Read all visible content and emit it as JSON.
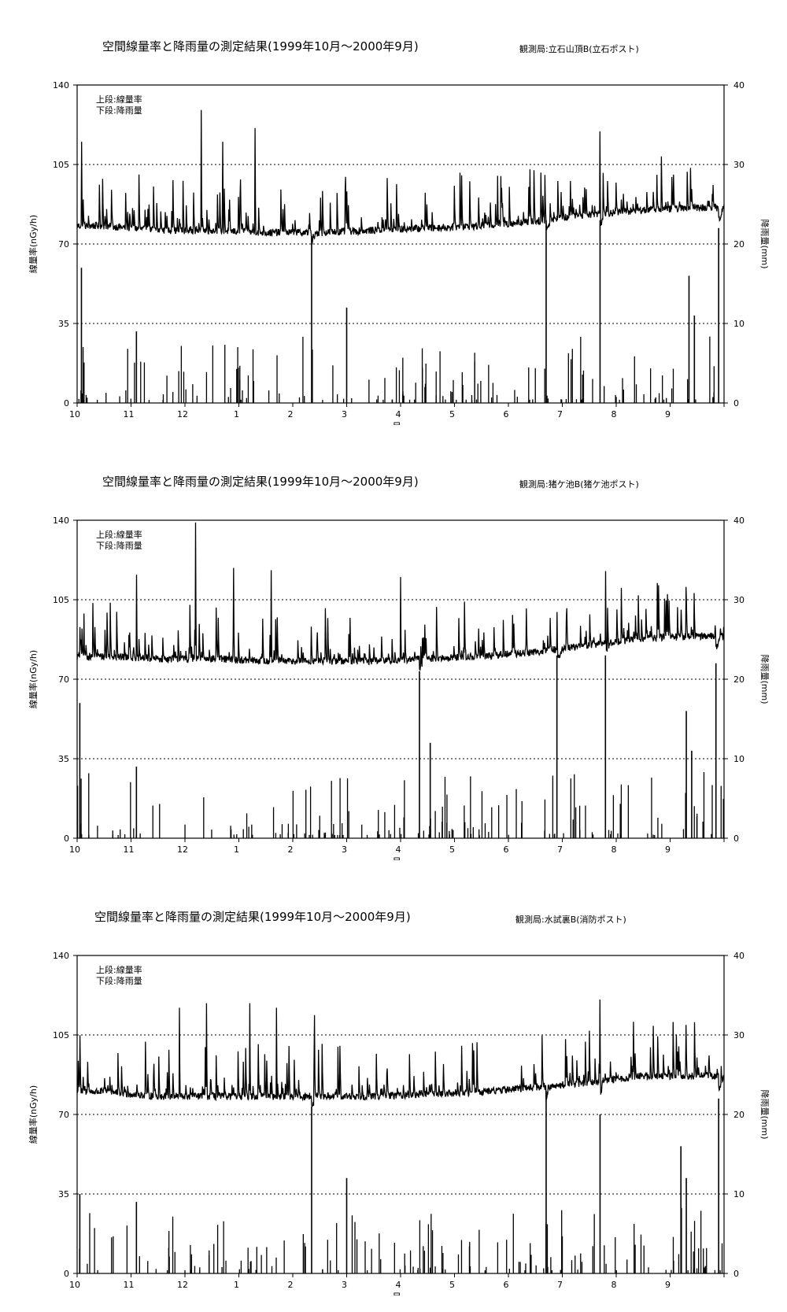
{
  "chart_data": [
    {
      "type": "line",
      "title": "空間線量率と降雨量の測定結果(1999年10月～2000年9月)",
      "station": "観測局:立石山頂B(立石ポスト)",
      "legend": [
        "上段:線量率",
        "下段:降雨量"
      ],
      "legend_placement": "top-left",
      "xlabel": "月",
      "ylabel": "線量率(nGy/h)",
      "y2label": "降雨量(mm)",
      "ylim": [
        0,
        140
      ],
      "y2lim": [
        0,
        40
      ],
      "yticks": [
        0,
        35,
        70,
        105,
        140
      ],
      "y2ticks": [
        0,
        10,
        20,
        30,
        40
      ],
      "grid": "dotted at 35, 70, 105",
      "xticks": [
        "10",
        "11",
        "12",
        "1",
        "2",
        "3",
        "4",
        "5",
        "6",
        "7",
        "8",
        "9"
      ],
      "dose_baseline": [
        {
          "month": "10",
          "value": 78
        },
        {
          "month": "11",
          "value": 76
        },
        {
          "month": "12",
          "value": 76
        },
        {
          "month": "1",
          "value": 75
        },
        {
          "month": "2",
          "value": 75
        },
        {
          "month": "3",
          "value": 76
        },
        {
          "month": "4",
          "value": 77
        },
        {
          "month": "5",
          "value": 78
        },
        {
          "month": "6",
          "value": 80
        },
        {
          "month": "7",
          "value": 83
        },
        {
          "month": "8",
          "value": 85
        },
        {
          "month": "9",
          "value": 86
        }
      ],
      "dose_peaks": [
        {
          "t": 0.08,
          "value": 115
        },
        {
          "t": 2.3,
          "value": 129
        },
        {
          "t": 2.7,
          "value": 115
        },
        {
          "t": 3.3,
          "value": 121
        },
        {
          "t": 7.8,
          "value": 100
        },
        {
          "t": 9.7,
          "value": 125
        },
        {
          "t": 11.8,
          "value": 96
        }
      ],
      "rain_peaks": [
        {
          "t": 0.08,
          "value": 17
        },
        {
          "t": 1.1,
          "value": 9
        },
        {
          "t": 4.35,
          "value": 21
        },
        {
          "t": 5.0,
          "value": 12
        },
        {
          "t": 8.7,
          "value": 23
        },
        {
          "t": 9.7,
          "value": 23
        },
        {
          "t": 11.35,
          "value": 16
        },
        {
          "t": 11.45,
          "value": 11
        },
        {
          "t": 11.9,
          "value": 22
        }
      ]
    },
    {
      "type": "line",
      "title": "空間線量率と降雨量の測定結果(1999年10月～2000年9月)",
      "station": "観測局:猪ケ池B(猪ケ池ポスト)",
      "legend": [
        "上段:線量率",
        "下段:降雨量"
      ],
      "legend_placement": "top-left",
      "xlabel": "月",
      "ylabel": "線量率(nGy/h)",
      "y2label": "降雨量(mm)",
      "ylim": [
        0,
        140
      ],
      "y2lim": [
        0,
        40
      ],
      "yticks": [
        0,
        35,
        70,
        105,
        140
      ],
      "y2ticks": [
        0,
        10,
        20,
        30,
        40
      ],
      "grid": "dotted at 35, 70, 105",
      "xticks": [
        "10",
        "11",
        "12",
        "1",
        "2",
        "3",
        "4",
        "5",
        "6",
        "7",
        "8",
        "9"
      ],
      "dose_baseline": [
        {
          "month": "10",
          "value": 80
        },
        {
          "month": "11",
          "value": 79
        },
        {
          "month": "12",
          "value": 79
        },
        {
          "month": "1",
          "value": 78
        },
        {
          "month": "2",
          "value": 78
        },
        {
          "month": "3",
          "value": 78
        },
        {
          "month": "4",
          "value": 79
        },
        {
          "month": "5",
          "value": 80
        },
        {
          "month": "6",
          "value": 82
        },
        {
          "month": "7",
          "value": 85
        },
        {
          "month": "8",
          "value": 88
        },
        {
          "month": "9",
          "value": 89
        }
      ],
      "dose_peaks": [
        {
          "t": 2.2,
          "value": 139
        },
        {
          "t": 1.1,
          "value": 116
        },
        {
          "t": 2.9,
          "value": 119
        },
        {
          "t": 3.6,
          "value": 118
        },
        {
          "t": 6.0,
          "value": 115
        },
        {
          "t": 8.9,
          "value": 105
        },
        {
          "t": 9.8,
          "value": 123
        }
      ],
      "rain_peaks": [
        {
          "t": 0.05,
          "value": 17
        },
        {
          "t": 1.1,
          "value": 9
        },
        {
          "t": 6.35,
          "value": 21
        },
        {
          "t": 6.55,
          "value": 12
        },
        {
          "t": 8.9,
          "value": 23
        },
        {
          "t": 9.8,
          "value": 23
        },
        {
          "t": 11.3,
          "value": 16
        },
        {
          "t": 11.4,
          "value": 11
        },
        {
          "t": 11.85,
          "value": 22
        }
      ]
    },
    {
      "type": "line",
      "title": "空間線量率と降雨量の測定結果(1999年10月～2000年9月)",
      "station": "観測局:水試裏B(消防ポスト)",
      "legend": [
        "上段:線量率",
        "下段:降雨量"
      ],
      "legend_placement": "top-left",
      "xlabel": "月",
      "ylabel": "線量率(nGy/h)",
      "y2label": "降雨量(mm)",
      "ylim": [
        0,
        140
      ],
      "y2lim": [
        0,
        40
      ],
      "yticks": [
        0,
        35,
        70,
        105,
        140
      ],
      "y2ticks": [
        0,
        10,
        20,
        30,
        40
      ],
      "grid": "dotted at 35, 70, 105",
      "xticks": [
        "10",
        "11",
        "12",
        "1",
        "2",
        "3",
        "4",
        "5",
        "6",
        "7",
        "8",
        "9"
      ],
      "dose_baseline": [
        {
          "month": "10",
          "value": 80
        },
        {
          "month": "11",
          "value": 78
        },
        {
          "month": "12",
          "value": 78
        },
        {
          "month": "1",
          "value": 78
        },
        {
          "month": "2",
          "value": 78
        },
        {
          "month": "3",
          "value": 78
        },
        {
          "month": "4",
          "value": 79
        },
        {
          "month": "5",
          "value": 80
        },
        {
          "month": "6",
          "value": 82
        },
        {
          "month": "7",
          "value": 84
        },
        {
          "month": "8",
          "value": 87
        },
        {
          "month": "9",
          "value": 87
        }
      ],
      "dose_peaks": [
        {
          "t": 1.9,
          "value": 117
        },
        {
          "t": 2.4,
          "value": 119
        },
        {
          "t": 3.2,
          "value": 119
        },
        {
          "t": 3.7,
          "value": 117
        },
        {
          "t": 4.4,
          "value": 116
        },
        {
          "t": 9.7,
          "value": 126
        },
        {
          "t": 11.95,
          "value": 94
        }
      ],
      "rain_peaks": [
        {
          "t": 0.05,
          "value": 10
        },
        {
          "t": 1.1,
          "value": 9
        },
        {
          "t": 4.35,
          "value": 21
        },
        {
          "t": 5.0,
          "value": 12
        },
        {
          "t": 8.7,
          "value": 23
        },
        {
          "t": 9.7,
          "value": 20
        },
        {
          "t": 11.2,
          "value": 16
        },
        {
          "t": 11.3,
          "value": 12
        },
        {
          "t": 11.9,
          "value": 22
        }
      ]
    }
  ]
}
